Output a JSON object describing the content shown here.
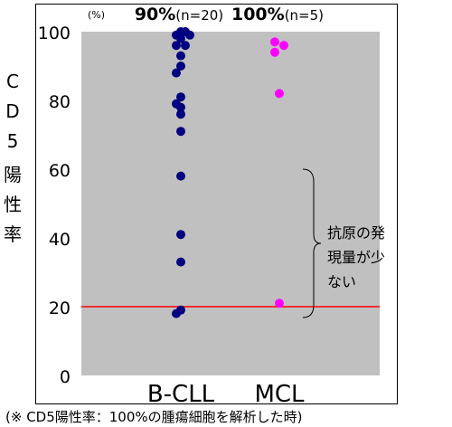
{
  "chart_data": {
    "type": "scatter",
    "title": "",
    "ylabel": "CD5陽性率",
    "xlabel": "",
    "ylim": [
      0,
      100
    ],
    "yticks": [
      0,
      20,
      40,
      60,
      80,
      100
    ],
    "unit_label": "(%)",
    "categories": [
      "B-CLL",
      "MCL"
    ],
    "background": "#c0c0c0",
    "series": [
      {
        "category": "B-CLL",
        "header_pct": "90%",
        "header_n": "(n=20)",
        "color": "#000080",
        "points": [
          {
            "x": 0,
            "y": 100
          },
          {
            "x": 1,
            "y": 100
          },
          {
            "x": -1,
            "y": 99
          },
          {
            "x": 2,
            "y": 99
          },
          {
            "x": 0,
            "y": 98
          },
          {
            "x": -1,
            "y": 96
          },
          {
            "x": 1,
            "y": 96
          },
          {
            "x": 0,
            "y": 93
          },
          {
            "x": 0,
            "y": 90
          },
          {
            "x": -1,
            "y": 88
          },
          {
            "x": 0,
            "y": 81
          },
          {
            "x": -1,
            "y": 79
          },
          {
            "x": 0,
            "y": 78
          },
          {
            "x": 0,
            "y": 76
          },
          {
            "x": 0,
            "y": 71
          },
          {
            "x": 0,
            "y": 58
          },
          {
            "x": 0,
            "y": 41
          },
          {
            "x": 0,
            "y": 33
          },
          {
            "x": -1,
            "y": 18
          },
          {
            "x": 0,
            "y": 19
          }
        ]
      },
      {
        "category": "MCL",
        "header_pct": "100%",
        "header_n": "(n=5)",
        "color": "#ff00ff",
        "points": [
          {
            "x": -1,
            "y": 97
          },
          {
            "x": 1,
            "y": 96
          },
          {
            "x": -1,
            "y": 94
          },
          {
            "x": 0,
            "y": 82
          },
          {
            "x": 0,
            "y": 21
          }
        ]
      }
    ],
    "reference_line": {
      "y": 20,
      "color": "#ff0000"
    },
    "annotation": {
      "text": "抗原の発現量が少ない",
      "range": [
        20,
        60
      ]
    },
    "footnote": "(※ CD5陽性率：100%の腫瘍細胞を解析した時)"
  }
}
